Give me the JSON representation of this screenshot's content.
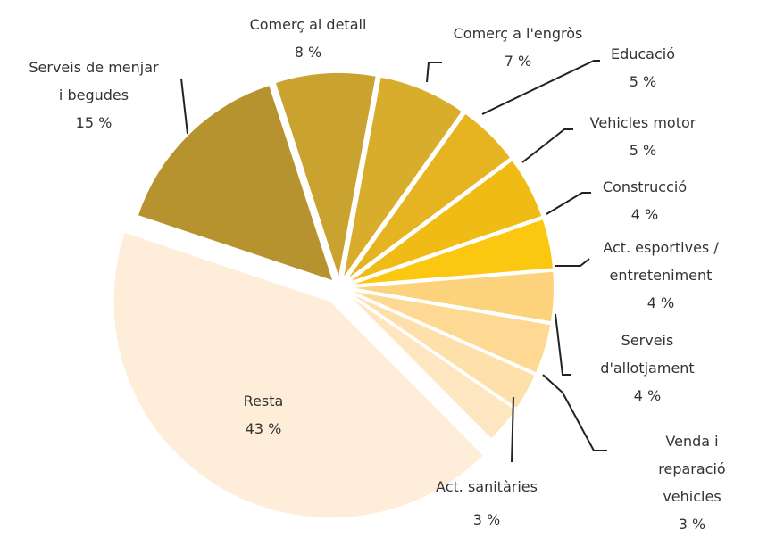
{
  "chart_data": {
    "type": "pie",
    "categories": [
      "Comerç al detall",
      "Comerç a l'engròs",
      "Educació",
      "Vehicles motor",
      "Construcció",
      "Act. esportives /\nentreteniment",
      "Serveis\nd'allotjament",
      "Venda i reparació\nvehicles",
      "Act. sanitàries",
      "Resta",
      "Serveis de menjar\ni begudes"
    ],
    "values": [
      8,
      7,
      5,
      5,
      4,
      4,
      4,
      3,
      3,
      43,
      15
    ],
    "value_labels": [
      "8 %",
      "7 %",
      "5 %",
      "5 %",
      "4 %",
      "4 %",
      "4 %",
      "3 %",
      "3 %",
      "43 %",
      "15 %"
    ],
    "colors": [
      "#c9a22f",
      "#d8ad2b",
      "#e6b321",
      "#f1bb16",
      "#fbc710",
      "#fdd27c",
      "#fdd993",
      "#fde0aa",
      "#fde6c0",
      "#feeed9",
      "#b7932f"
    ]
  }
}
